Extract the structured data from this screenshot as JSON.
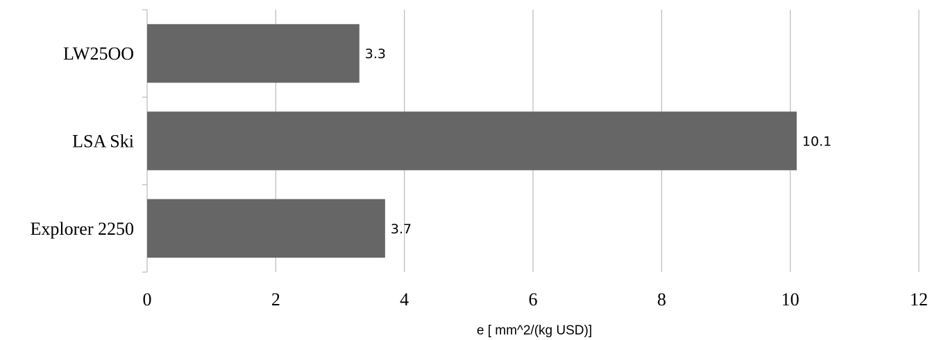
{
  "chart_data": {
    "type": "bar",
    "orientation": "horizontal",
    "categories": [
      "LW25OO",
      "LSA Ski",
      "Explorer 2250"
    ],
    "values": [
      3.3,
      10.1,
      3.7
    ],
    "data_labels": [
      "3.3",
      "10.1",
      "3.7"
    ],
    "title": "",
    "xlabel": "e [ mm^2/(kg USD)]",
    "ylabel": "",
    "xlim": [
      0,
      12
    ],
    "x_ticks": [
      0,
      2,
      4,
      6,
      8,
      10,
      12
    ],
    "grid": "vertical",
    "legend": "none",
    "bar_color": "#666666",
    "grid_color": "#bfbfbf"
  }
}
